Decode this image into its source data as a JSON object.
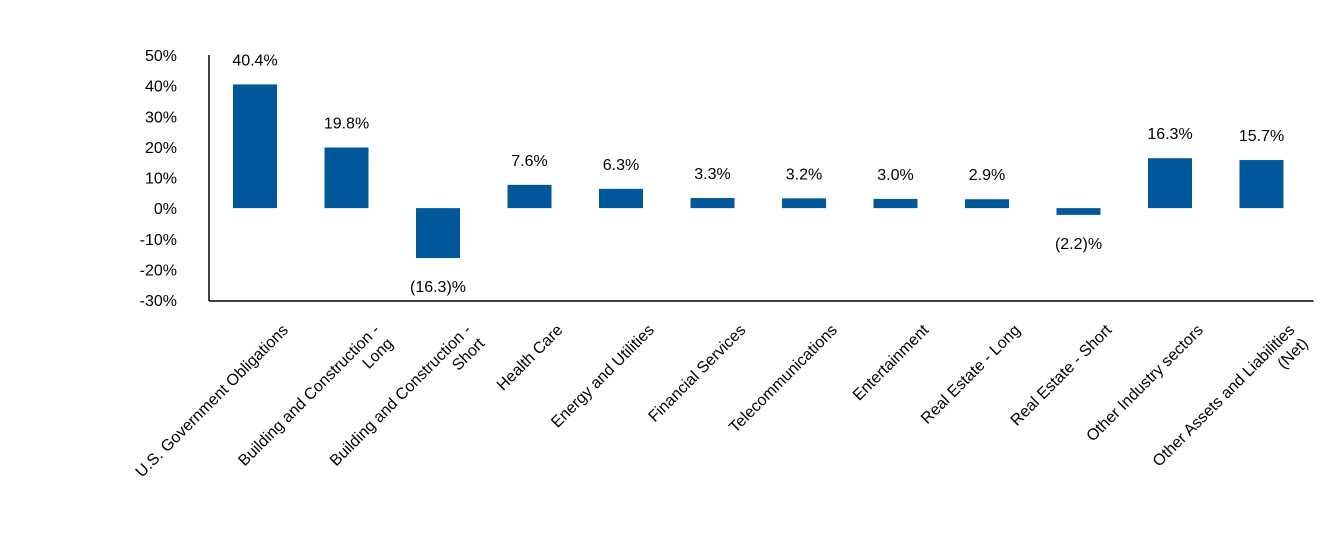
{
  "chart_data": {
    "type": "bar",
    "title": "",
    "xlabel": "",
    "ylabel": "",
    "ylim": [
      -30,
      50
    ],
    "yticks": [
      50,
      40,
      30,
      20,
      10,
      0,
      -10,
      -20,
      -30
    ],
    "ytick_labels": [
      "50%",
      "40%",
      "30%",
      "20%",
      "10%",
      "0%",
      "-10%",
      "-20%",
      "-30%"
    ],
    "grid": false,
    "legend": "none",
    "bar_color": "#00589A",
    "categories": [
      "U.S. Government Obligations",
      "Building and Construction - Long",
      "Building and Construction - Short",
      "Health Care",
      "Energy and Utilities",
      "Financial Services",
      "Telecommunications",
      "Entertainment",
      "Real Estate - Long",
      "Real Estate - Short",
      "Other Industry sectors",
      "Other Assets and Liabilities (Net)"
    ],
    "category_label_lines": [
      [
        "U.S. Government Obligations"
      ],
      [
        "Building and Construction -",
        "Long"
      ],
      [
        "Building and Construction -",
        "Short"
      ],
      [
        "Health Care"
      ],
      [
        "Energy and Utilities"
      ],
      [
        "Financial Services"
      ],
      [
        "Telecommunications"
      ],
      [
        "Entertainment"
      ],
      [
        "Real Estate - Long"
      ],
      [
        "Real Estate - Short"
      ],
      [
        "Other Industry sectors"
      ],
      [
        "Other Assets and Liabilities",
        "(Net)"
      ]
    ],
    "values": [
      40.4,
      19.8,
      -16.3,
      7.6,
      6.3,
      3.3,
      3.2,
      3.0,
      2.9,
      -2.2,
      16.3,
      15.7
    ],
    "data_labels": [
      "40.4%",
      "19.8%",
      "(16.3)%",
      "7.6%",
      "6.3%",
      "3.3%",
      "3.2%",
      "3.0%",
      "2.9%",
      "(2.2)%",
      "16.3%",
      "15.7%"
    ]
  }
}
